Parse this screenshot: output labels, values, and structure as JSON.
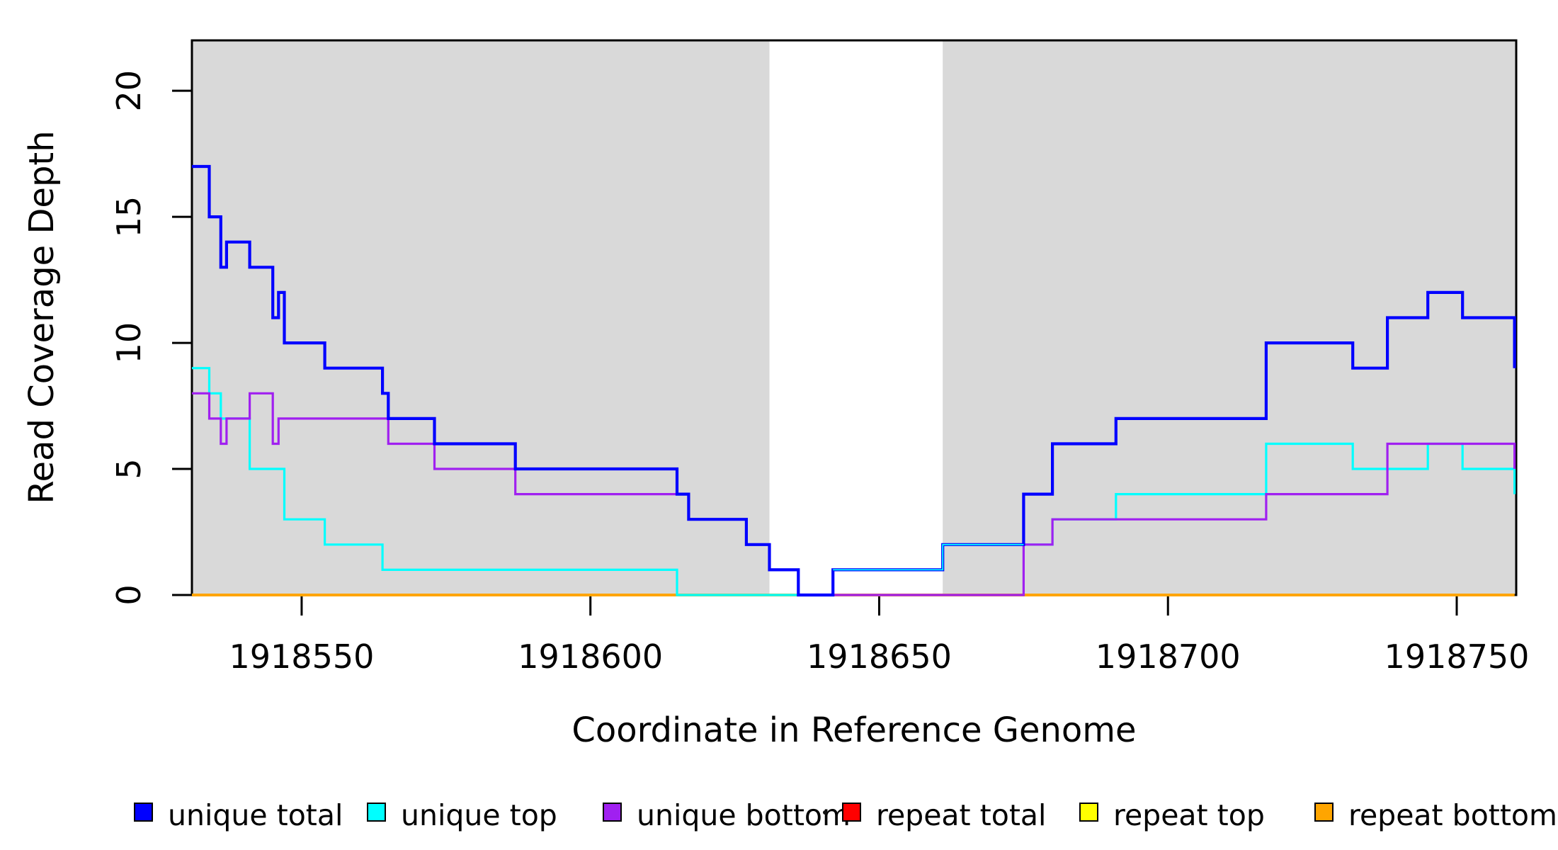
{
  "figure": {
    "y_axis_title": "Read Coverage Depth",
    "x_axis_title": "Coordinate in Reference Genome"
  },
  "colors": {
    "blue": "#0000FF",
    "cyan": "#00FFFF",
    "purple": "#A020F0",
    "red": "#FF0000",
    "yellow": "#FFFF00",
    "orange": "#FFA500",
    "band": "#D9D9D9",
    "axis": "#000000",
    "background": "#FFFFFF"
  },
  "legend": {
    "items": [
      {
        "label": "unique total",
        "color": "blue"
      },
      {
        "label": "unique top",
        "color": "cyan"
      },
      {
        "label": "unique bottom",
        "color": "purple"
      },
      {
        "label": "repeat total",
        "color": "red"
      },
      {
        "label": "repeat top",
        "color": "yellow"
      },
      {
        "label": "repeat bottom",
        "color": "orange"
      }
    ]
  },
  "chart_data": {
    "type": "line",
    "subtype": "step-after",
    "title": "",
    "xlabel": "Coordinate in Reference Genome",
    "ylabel": "Read Coverage Depth",
    "x_range": [
      1918531,
      1918760.3
    ],
    "y_range": [
      0,
      22
    ],
    "x_ticks": [
      1918550,
      1918600,
      1918650,
      1918700,
      1918750
    ],
    "y_ticks": [
      0,
      5,
      10,
      15,
      20
    ],
    "grid": false,
    "legend_position": "bottom",
    "shaded_regions": [
      {
        "x0": 1918531,
        "x1": 1918631
      },
      {
        "x0": 1918661,
        "x1": 1918760.3
      }
    ],
    "draw_order": [
      "repeat total",
      "repeat top",
      "repeat bottom",
      "unique top",
      "unique bottom",
      "unique total"
    ],
    "series": [
      {
        "name": "unique total",
        "color": "blue",
        "width": 4.2,
        "steps": [
          [
            1918531,
            17
          ],
          [
            1918534,
            15
          ],
          [
            1918536,
            13
          ],
          [
            1918537,
            14
          ],
          [
            1918541,
            13
          ],
          [
            1918545,
            11
          ],
          [
            1918546,
            12
          ],
          [
            1918547,
            10
          ],
          [
            1918554,
            9
          ],
          [
            1918564,
            8
          ],
          [
            1918565,
            7
          ],
          [
            1918573,
            6
          ],
          [
            1918587,
            5
          ],
          [
            1918615,
            4
          ],
          [
            1918617,
            3
          ],
          [
            1918627,
            2
          ],
          [
            1918631,
            1
          ],
          [
            1918636,
            0
          ],
          [
            1918642,
            1
          ],
          [
            1918661,
            2
          ],
          [
            1918675,
            4
          ],
          [
            1918680,
            6
          ],
          [
            1918691,
            7
          ],
          [
            1918717,
            10
          ],
          [
            1918732,
            9
          ],
          [
            1918738,
            11
          ],
          [
            1918745,
            12
          ],
          [
            1918751,
            11
          ],
          [
            1918760,
            9
          ]
        ]
      },
      {
        "name": "unique top",
        "color": "cyan",
        "width": 3.2,
        "steps": [
          [
            1918531,
            9
          ],
          [
            1918534,
            8
          ],
          [
            1918536,
            7
          ],
          [
            1918541,
            5
          ],
          [
            1918547,
            3
          ],
          [
            1918554,
            2
          ],
          [
            1918564,
            1
          ],
          [
            1918615,
            0
          ],
          [
            1918642,
            1
          ],
          [
            1918661,
            2
          ],
          [
            1918680,
            3
          ],
          [
            1918691,
            4
          ],
          [
            1918717,
            6
          ],
          [
            1918732,
            5
          ],
          [
            1918745,
            6
          ],
          [
            1918751,
            5
          ],
          [
            1918760,
            4
          ]
        ]
      },
      {
        "name": "unique bottom",
        "color": "purple",
        "width": 3.2,
        "steps": [
          [
            1918531,
            8
          ],
          [
            1918534,
            7
          ],
          [
            1918536,
            6
          ],
          [
            1918537,
            7
          ],
          [
            1918541,
            8
          ],
          [
            1918545,
            6
          ],
          [
            1918546,
            7
          ],
          [
            1918565,
            6
          ],
          [
            1918573,
            5
          ],
          [
            1918587,
            4
          ],
          [
            1918617,
            3
          ],
          [
            1918627,
            2
          ],
          [
            1918631,
            1
          ],
          [
            1918636,
            0
          ],
          [
            1918675,
            2
          ],
          [
            1918680,
            3
          ],
          [
            1918717,
            4
          ],
          [
            1918738,
            6
          ],
          [
            1918760,
            5
          ]
        ]
      },
      {
        "name": "repeat total",
        "color": "red",
        "width": 3.2,
        "steps": [
          [
            1918531,
            0
          ],
          [
            1918760,
            0
          ]
        ]
      },
      {
        "name": "repeat top",
        "color": "yellow",
        "width": 3.2,
        "steps": [
          [
            1918531,
            0
          ],
          [
            1918760,
            0
          ]
        ]
      },
      {
        "name": "repeat bottom",
        "color": "orange",
        "width": 4.0,
        "steps": [
          [
            1918531,
            0
          ],
          [
            1918760,
            0
          ]
        ]
      }
    ],
    "blend_overlays": [
      {
        "color": "cyan",
        "width": 1.8,
        "steps": [
          [
            1918642,
            1
          ],
          [
            1918661,
            2
          ],
          [
            1918675,
            2
          ]
        ]
      }
    ]
  }
}
